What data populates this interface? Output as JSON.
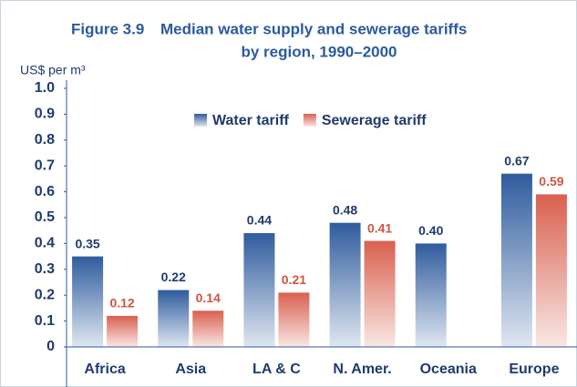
{
  "chart_data": {
    "type": "bar",
    "figure_label": "Figure 3.9",
    "title": [
      "Median water supply and sewerage tariffs",
      "by region, 1990–2000"
    ],
    "y_label": "US$ per m³",
    "categories": [
      "Africa",
      "Asia",
      "LA & C",
      "N. Amer.",
      "Oceania",
      "Europe"
    ],
    "series": [
      {
        "name": "Water tariff",
        "color": "#2f5c9e",
        "label_color": "#1f3b6e",
        "values": [
          0.35,
          0.22,
          0.44,
          0.48,
          0.4,
          0.67
        ],
        "value_labels": [
          "0.35",
          "0.22",
          "0.44",
          "0.48",
          "0.40",
          "0.67"
        ]
      },
      {
        "name": "Sewerage tariff",
        "color": "#d9604f",
        "label_color": "#d0553f",
        "values": [
          0.12,
          0.14,
          0.21,
          0.41,
          null,
          0.59
        ],
        "value_labels": [
          "0.12",
          "0.14",
          "0.21",
          "0.41",
          null,
          "0.59"
        ]
      }
    ],
    "ylim": [
      0,
      1
    ],
    "yticks": [
      0,
      0.1,
      0.2,
      0.3,
      0.4,
      0.5,
      0.6,
      0.7,
      0.8,
      0.9,
      {
        "value": 1,
        "label": "1.0"
      }
    ],
    "legend": "upper center"
  }
}
